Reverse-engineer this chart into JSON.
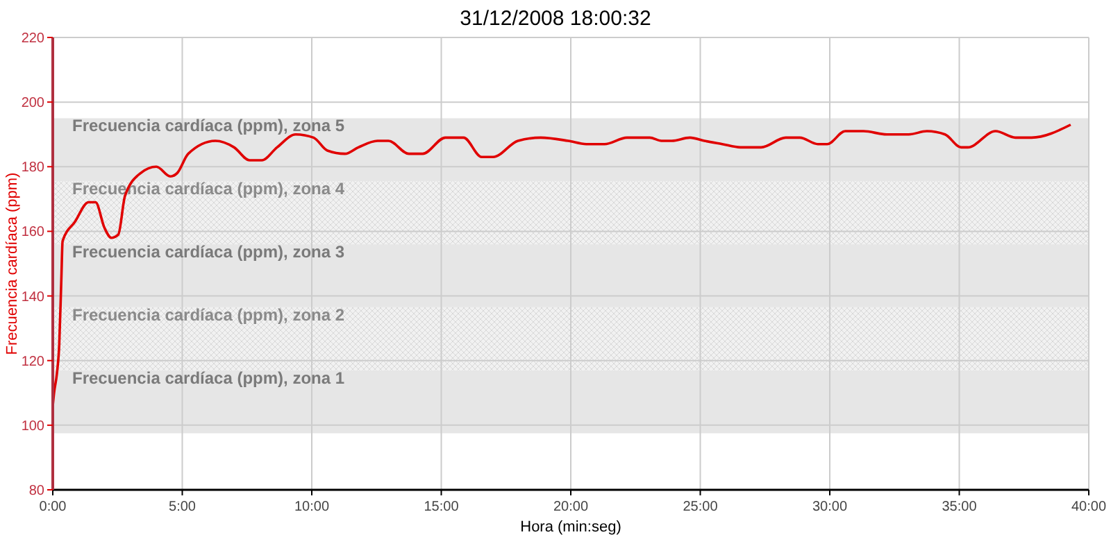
{
  "chart_data": {
    "type": "line",
    "title": "31/12/2008 18:00:32",
    "xlabel": "Hora (min:seg)",
    "ylabel": "Frecuencia cardíaca (ppm)",
    "xlim": [
      0,
      40
    ],
    "xticks": [
      {
        "value": 0,
        "label": "0:00"
      },
      {
        "value": 5,
        "label": "5:00"
      },
      {
        "value": 10,
        "label": "10:00"
      },
      {
        "value": 15,
        "label": "15:00"
      },
      {
        "value": 20,
        "label": "20:00"
      },
      {
        "value": 25,
        "label": "25:00"
      },
      {
        "value": 30,
        "label": "30:00"
      },
      {
        "value": 35,
        "label": "35:00"
      },
      {
        "value": 40,
        "label": "40:00"
      }
    ],
    "ylim": [
      80,
      220
    ],
    "yticks": [
      80,
      100,
      120,
      140,
      160,
      180,
      200,
      220
    ],
    "grid": true,
    "bands": [
      {
        "axis": "y",
        "from": 97.5,
        "to": 117,
        "label": "Frecuencia cardíaca (ppm), zona 1",
        "color": "#e6e6e6"
      },
      {
        "axis": "y",
        "from": 117,
        "to": 136.5,
        "label": "Frecuencia cardíaca (ppm), zona 2",
        "color": "#f1f1f1"
      },
      {
        "axis": "y",
        "from": 136.5,
        "to": 156,
        "label": "Frecuencia cardíaca (ppm), zona 3",
        "color": "#e6e6e6"
      },
      {
        "axis": "y",
        "from": 156,
        "to": 175.5,
        "label": "Frecuencia cardíaca (ppm), zona 4",
        "color": "#f1f1f1"
      },
      {
        "axis": "y",
        "from": 175.5,
        "to": 195,
        "label": "Frecuencia cardíaca (ppm), zona 5",
        "color": "#e6e6e6"
      }
    ],
    "series": [
      {
        "color": "#e00000",
        "x": [
          0,
          0.05,
          0.16,
          0.25,
          0.33,
          0.38,
          0.86,
          1.38,
          1.65,
          2.0,
          2.26,
          2.53,
          2.79,
          3.39,
          4.0,
          4.54,
          4.8,
          5.23,
          6.28,
          7.0,
          7.6,
          8.07,
          8.66,
          9.38,
          10.07,
          10.6,
          11.28,
          11.8,
          12.54,
          12.96,
          13.75,
          14.28,
          15.16,
          15.86,
          16.56,
          17.0,
          17.96,
          18.84,
          19.9,
          20.6,
          21.3,
          22.17,
          23.05,
          23.5,
          23.9,
          24.6,
          25.16,
          25.85,
          26.55,
          27.35,
          28.3,
          28.84,
          29.54,
          29.9,
          30.6,
          31.3,
          32.2,
          33.05,
          33.75,
          34.45,
          35.07,
          35.33,
          36.4,
          37.17,
          37.79,
          39.3
        ],
        "values": [
          106,
          110,
          116,
          125,
          145,
          157,
          163,
          169,
          169,
          161,
          158,
          159,
          171,
          178,
          180,
          177,
          178,
          184,
          188,
          186,
          182,
          182,
          186,
          190,
          189,
          185,
          184,
          186,
          188,
          188,
          184,
          184,
          189,
          189,
          183,
          183,
          188,
          189,
          188,
          187,
          187,
          189,
          189,
          188,
          188,
          189,
          188,
          187,
          186,
          186,
          189,
          189,
          187,
          187,
          191,
          191,
          190,
          190,
          191,
          190,
          186,
          186,
          191,
          189,
          189,
          193
        ]
      }
    ]
  }
}
